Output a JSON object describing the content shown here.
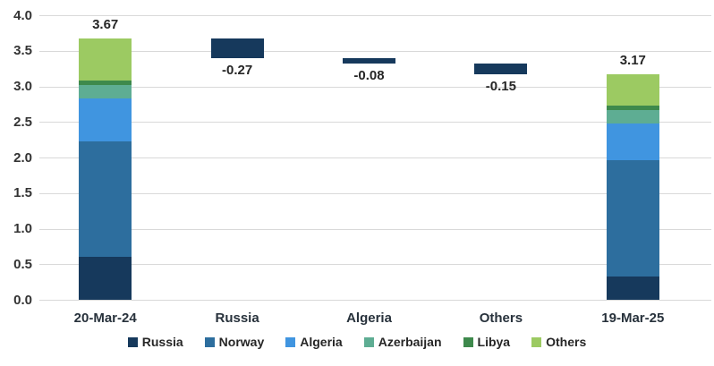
{
  "chart_data": {
    "type": "bar",
    "subtype": "waterfall-with-stacked-endpoints",
    "title": "",
    "xlabel": "",
    "ylabel": "",
    "categories": [
      "20-Mar-24",
      "Russia",
      "Algeria",
      "Others",
      "19-Mar-25"
    ],
    "stacked_categories_index": [
      0,
      4
    ],
    "series": [
      {
        "name": "Russia",
        "color": "#16395c",
        "values": [
          0.6,
          null,
          null,
          null,
          0.33
        ]
      },
      {
        "name": "Norway",
        "color": "#2d6e9e",
        "values": [
          1.63,
          null,
          null,
          null,
          1.63
        ]
      },
      {
        "name": "Algeria",
        "color": "#4095e0",
        "values": [
          0.6,
          null,
          null,
          null,
          0.52
        ]
      },
      {
        "name": "Azerbaijan",
        "color": "#5ead93",
        "values": [
          0.19,
          null,
          null,
          null,
          0.19
        ]
      },
      {
        "name": "Libya",
        "color": "#3e894c",
        "values": [
          0.06,
          null,
          null,
          null,
          0.06
        ]
      },
      {
        "name": "Others",
        "color": "#9cca62",
        "values": [
          0.59,
          null,
          null,
          null,
          0.44
        ]
      }
    ],
    "waterfall_steps": [
      {
        "category": "Russia",
        "start": 3.67,
        "end": 3.4,
        "label": "-0.27"
      },
      {
        "category": "Algeria",
        "start": 3.4,
        "end": 3.32,
        "label": "-0.08"
      },
      {
        "category": "Others",
        "start": 3.32,
        "end": 3.17,
        "label": "-0.15"
      }
    ],
    "waterfall_bar_color": "#16395c",
    "totals": [
      {
        "category": "20-Mar-24",
        "value": 3.67,
        "label": "3.67"
      },
      {
        "category": "19-Mar-25",
        "value": 3.17,
        "label": "3.17"
      }
    ],
    "ylim": [
      0.0,
      4.0
    ],
    "ytick_step": 0.5,
    "yticks": [
      "0.0",
      "0.5",
      "1.0",
      "1.5",
      "2.0",
      "2.5",
      "3.0",
      "3.5",
      "4.0"
    ],
    "grid": true,
    "gridline_color": "#d9d9d9",
    "legend_position": "bottom",
    "background_color": "#ffffff"
  }
}
